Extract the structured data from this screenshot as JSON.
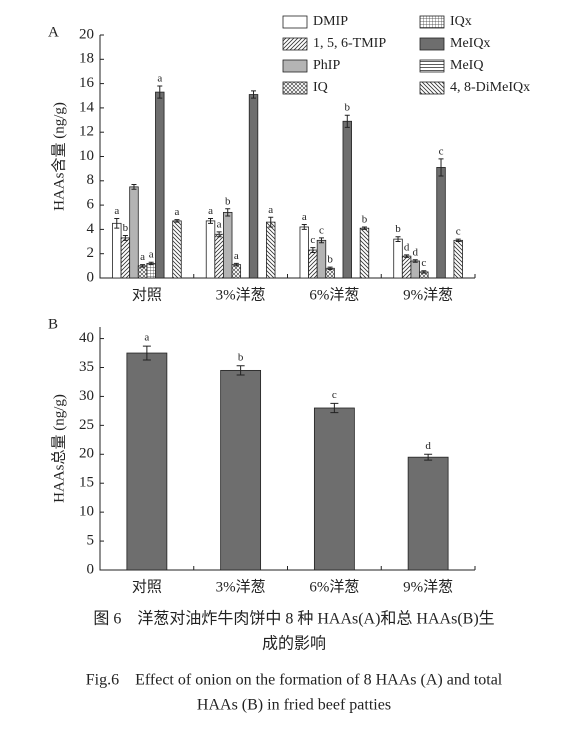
{
  "chart_data": [
    {
      "type": "grouped-bar",
      "panel": "A",
      "ylabel": "HAAs含量 (ng/g)",
      "categories": [
        "对照",
        "3%洋葱",
        "6%洋葱",
        "9%洋葱"
      ],
      "ylim": [
        0,
        20
      ],
      "yticks": [
        0,
        2,
        4,
        6,
        8,
        10,
        12,
        14,
        16,
        18,
        20
      ],
      "series": [
        {
          "name": "DMIP",
          "color": "#ffffff",
          "pattern": "none",
          "values": [
            4.5,
            4.7,
            4.2,
            3.2
          ],
          "errors": [
            0.4,
            0.2,
            0.2,
            0.2
          ],
          "labels": [
            "a",
            "a",
            "a",
            "b"
          ]
        },
        {
          "name": "1, 5, 6-TMIP",
          "color": "#ffffff",
          "pattern": "hatch",
          "values": [
            3.3,
            3.6,
            2.3,
            1.8
          ],
          "errors": [
            0.2,
            0.2,
            0.2,
            0.1
          ],
          "labels": [
            "b",
            "a",
            "c",
            "d"
          ]
        },
        {
          "name": "PhIP",
          "color": "#b4b4b4",
          "pattern": "none",
          "values": [
            7.5,
            5.4,
            3.1,
            1.4
          ],
          "errors": [
            0.2,
            0.3,
            0.2,
            0.1
          ],
          "labels": [
            null,
            "b",
            "c",
            "d"
          ]
        },
        {
          "name": "IQ",
          "color": "#ffffff",
          "pattern": "crosshatch",
          "values": [
            1.0,
            1.1,
            0.8,
            0.5
          ],
          "errors": [
            0.1,
            0.1,
            0.1,
            0.1
          ],
          "labels": [
            "a",
            "a",
            "b",
            "c"
          ]
        },
        {
          "name": "IQx",
          "color": "#ffffff",
          "pattern": "grid",
          "values": [
            1.2,
            0,
            0,
            0
          ],
          "errors": [
            0.1,
            0,
            0,
            0
          ],
          "labels": [
            "a",
            null,
            null,
            null
          ]
        },
        {
          "name": "MeIQx",
          "color": "#6e6e6e",
          "pattern": "none",
          "values": [
            15.3,
            15.1,
            12.9,
            9.1
          ],
          "errors": [
            0.5,
            0.3,
            0.5,
            0.7
          ],
          "labels": [
            "a",
            null,
            "b",
            "c"
          ]
        },
        {
          "name": "MeIQ",
          "color": "#ffffff",
          "pattern": "hlines",
          "values": [
            0,
            0,
            0,
            0
          ],
          "errors": [
            0,
            0,
            0,
            0
          ],
          "labels": [
            null,
            null,
            null,
            null
          ]
        },
        {
          "name": "4, 8-DiMeIQx",
          "color": "#ffffff",
          "pattern": "backhatch",
          "values": [
            4.7,
            4.6,
            4.1,
            3.1
          ],
          "errors": [
            0.1,
            0.4,
            0.1,
            0.1
          ],
          "labels": [
            "a",
            "a",
            "b",
            "c"
          ]
        }
      ]
    },
    {
      "type": "bar",
      "panel": "B",
      "ylabel": "HAAs总量 (ng/g)",
      "categories": [
        "对照",
        "3%洋葱",
        "6%洋葱",
        "9%洋葱"
      ],
      "ylim": [
        0,
        42
      ],
      "yticks": [
        0,
        5,
        10,
        15,
        20,
        25,
        30,
        35,
        40
      ],
      "color": "#6e6e6e",
      "values": [
        37.5,
        34.5,
        28.0,
        19.5
      ],
      "errors": [
        1.2,
        0.8,
        0.8,
        0.5
      ],
      "labels": [
        "a",
        "b",
        "c",
        "d"
      ]
    }
  ],
  "caption": [
    "图 6　洋葱对油炸牛肉饼中 8 种 HAAs(A)和总 HAAs(B)生",
    "成的影响",
    "Fig.6　Effect of onion on the formation of 8 HAAs (A) and total",
    "HAAs (B) in fried beef patties"
  ]
}
